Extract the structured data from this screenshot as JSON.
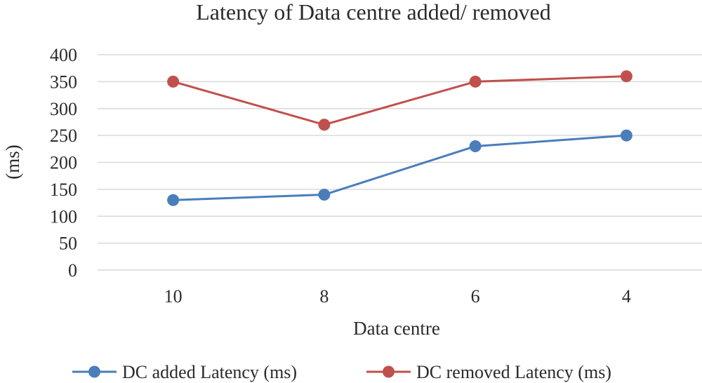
{
  "chart_data": {
    "type": "line",
    "title": "Latency of Data centre added/ removed",
    "xlabel": "Data centre",
    "ylabel": "(ms)",
    "categories": [
      "10",
      "8",
      "6",
      "4"
    ],
    "ylim": [
      0,
      400
    ],
    "yticks": [
      "0",
      "50",
      "100",
      "150",
      "200",
      "250",
      "300",
      "350",
      "400"
    ],
    "grid": true,
    "legend_position": "bottom",
    "series": [
      {
        "name": "DC added Latency (ms)",
        "color": "#4a7ebb",
        "values": [
          130,
          140,
          230,
          250
        ]
      },
      {
        "name": "DC removed Latency (ms)",
        "color": "#c0504d",
        "values": [
          350,
          270,
          350,
          360
        ]
      }
    ]
  }
}
